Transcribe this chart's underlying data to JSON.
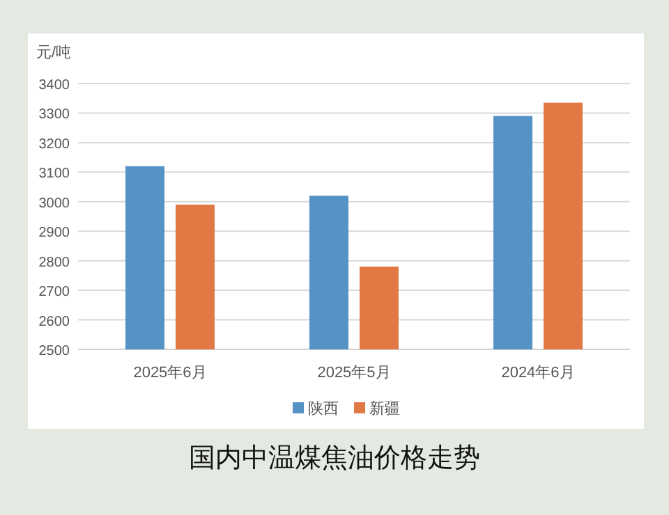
{
  "chart_data": {
    "type": "bar",
    "title": "国内中温煤焦油价格走势",
    "ylabel": "元/吨",
    "categories": [
      "2025年6月",
      "2025年5月",
      "2024年6月"
    ],
    "series": [
      {
        "name": "陕西",
        "color": "#5592c6",
        "values": [
          3120,
          3020,
          3290
        ]
      },
      {
        "name": "新疆",
        "color": "#e27844",
        "values": [
          2990,
          2780,
          3335
        ]
      }
    ],
    "ylim": [
      2500,
      3400
    ],
    "yticks": [
      2500,
      2600,
      2700,
      2800,
      2900,
      3000,
      3100,
      3200,
      3300,
      3400
    ],
    "grid": "y",
    "legend": "bottom"
  }
}
